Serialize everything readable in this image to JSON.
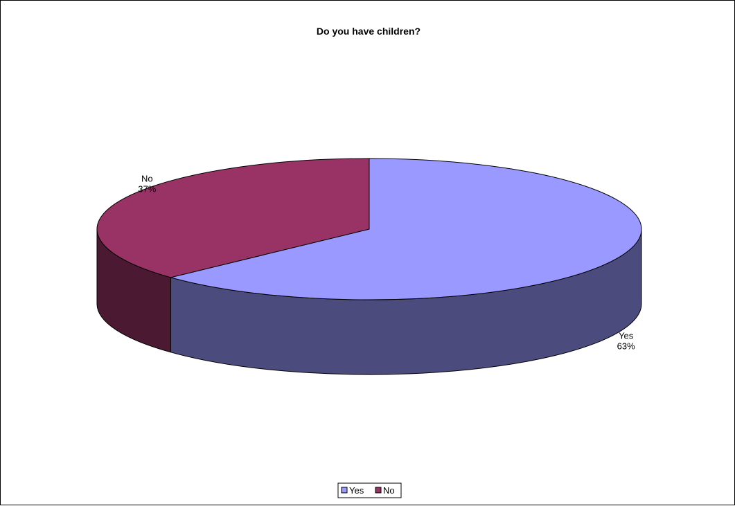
{
  "chart_data": {
    "type": "pie",
    "title": "Do you have children?",
    "categories": [
      "Yes",
      "No"
    ],
    "values": [
      63,
      37
    ],
    "value_format": "percent",
    "three_d": true,
    "legend": {
      "position": "bottom",
      "entries": [
        "Yes",
        "No"
      ]
    },
    "colors": {
      "Yes": {
        "top": "#9999ff",
        "side": "#4b4b7d"
      },
      "No": {
        "top": "#993366",
        "side": "#4b1932"
      }
    },
    "data_labels": [
      {
        "name": "Yes",
        "percent": "63%"
      },
      {
        "name": "No",
        "percent": "37%"
      }
    ]
  }
}
